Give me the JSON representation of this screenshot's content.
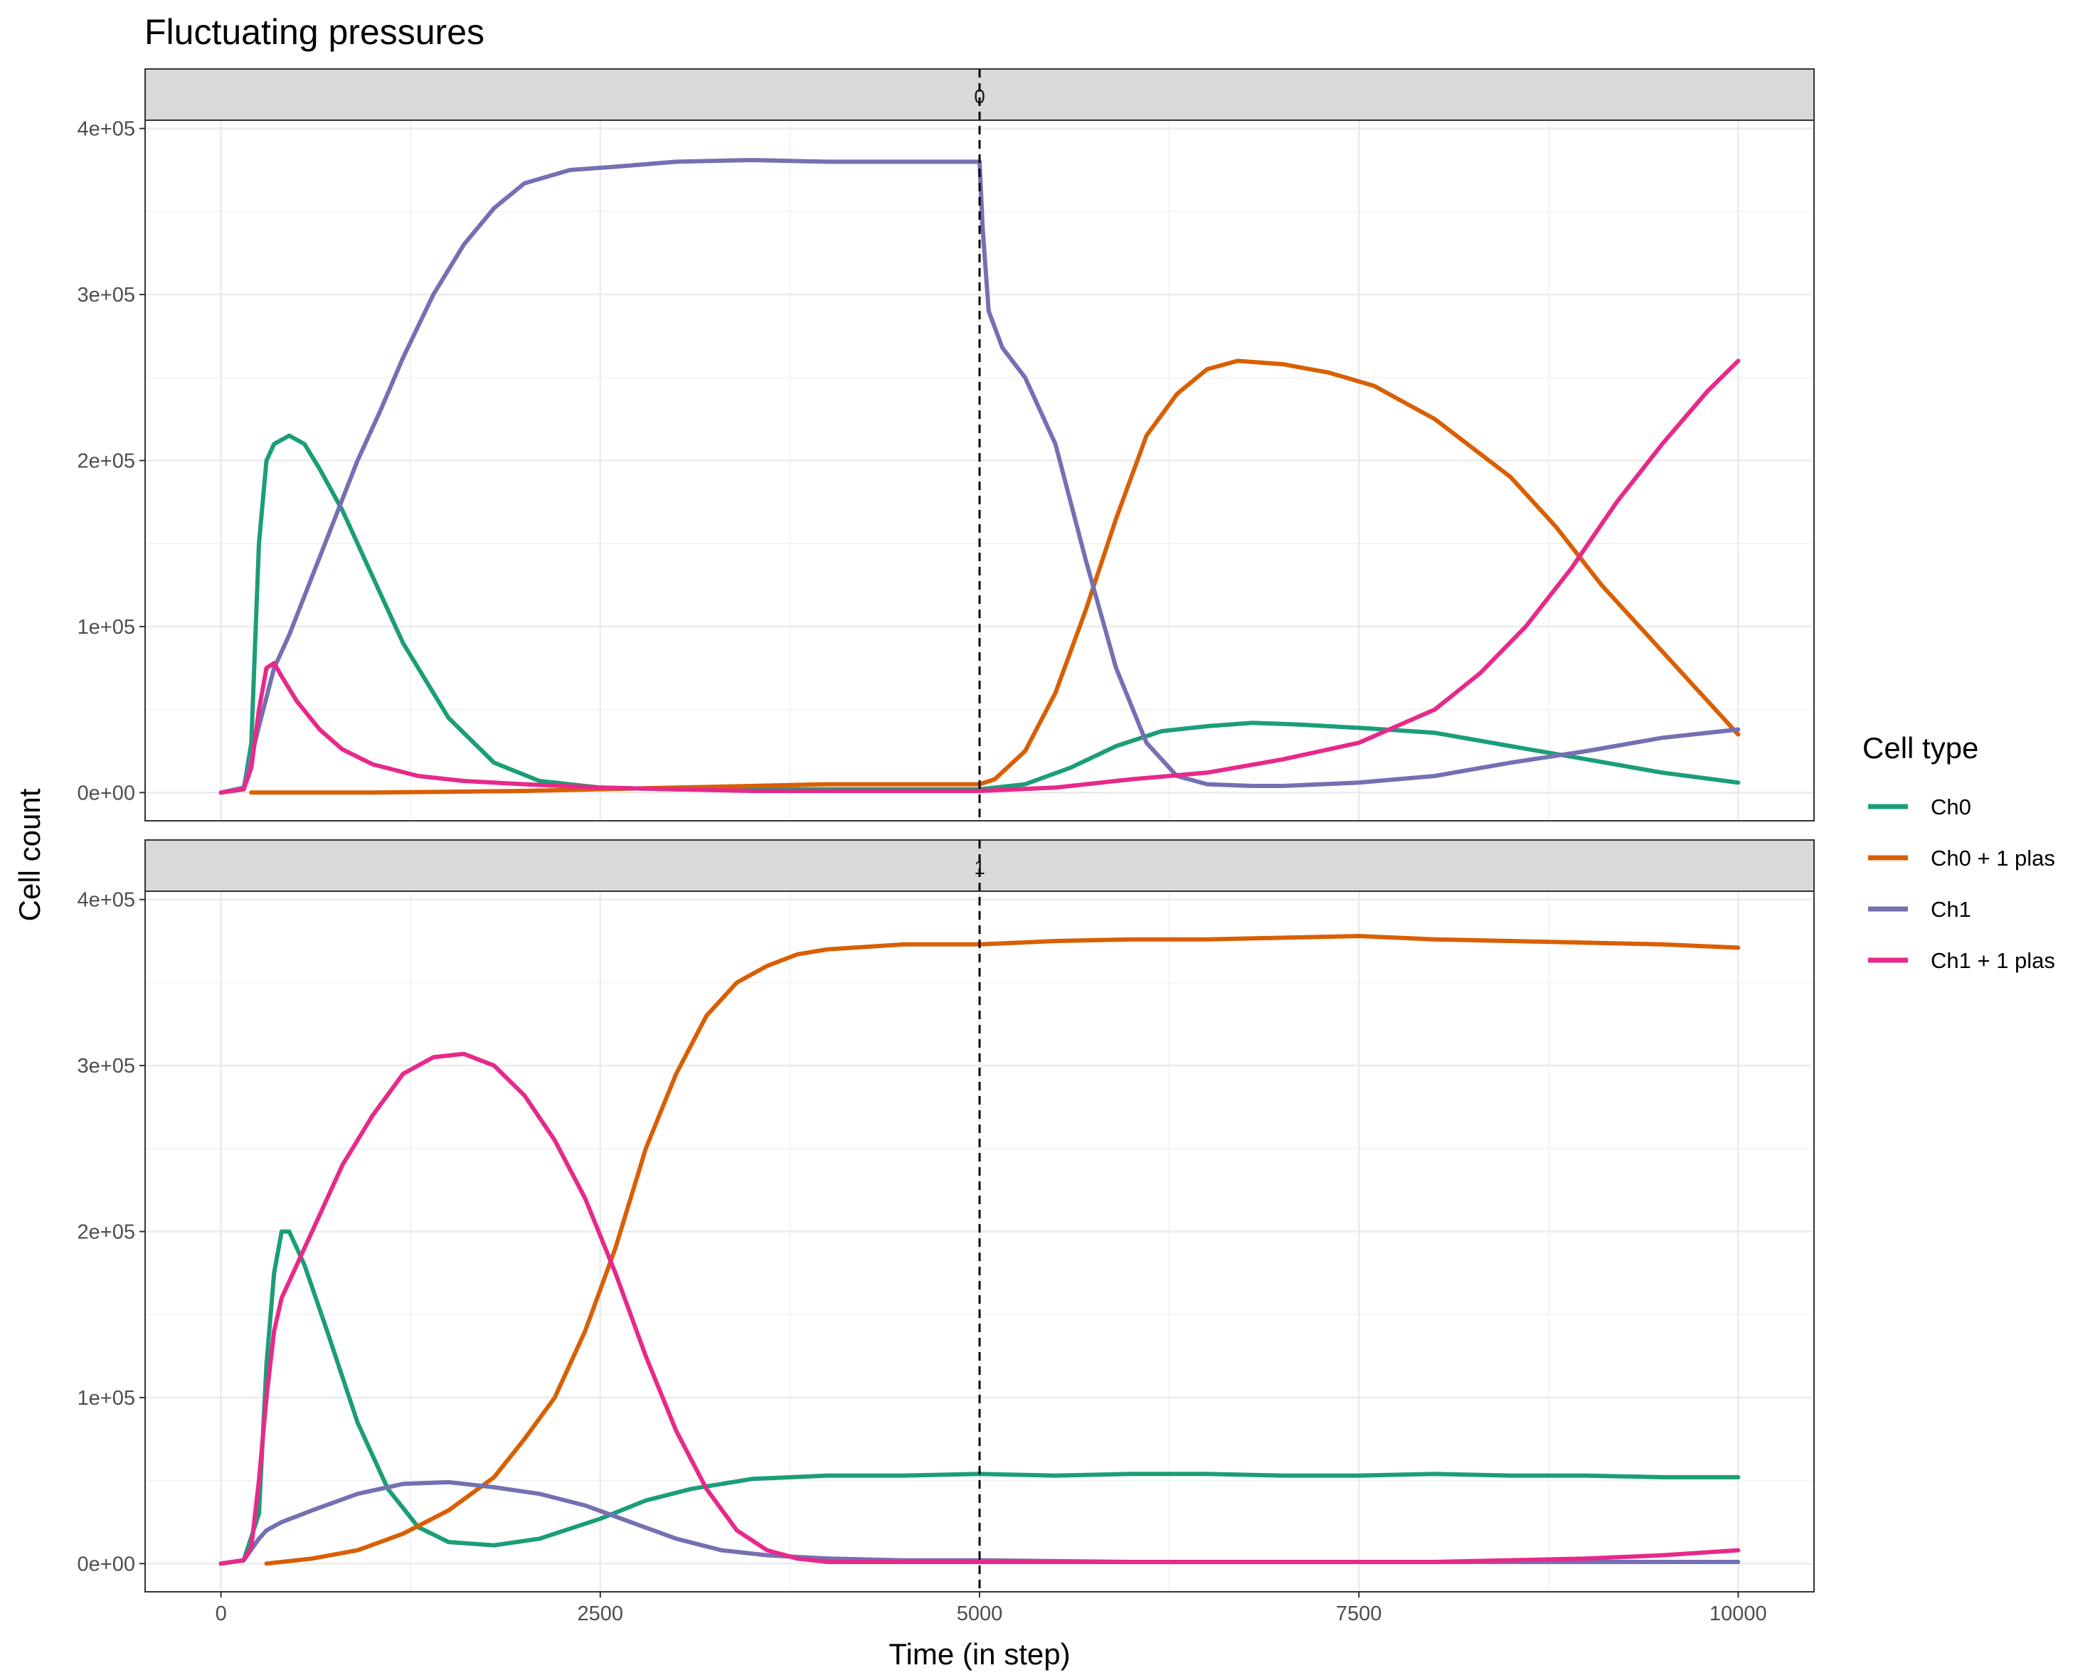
{
  "chart_data": {
    "type": "line",
    "title": "Fluctuating pressures",
    "xlabel": "Time (in step)",
    "ylabel": "Cell count",
    "xlim": [
      -500,
      10500
    ],
    "ylim": [
      -17000,
      405000
    ],
    "x_ticks": [
      0,
      2500,
      5000,
      7500,
      10000
    ],
    "x_tick_labels": [
      "0",
      "2500",
      "5000",
      "7500",
      "10000"
    ],
    "y_ticks": [
      0,
      100000,
      200000,
      300000,
      400000
    ],
    "y_tick_labels": [
      "0e+00",
      "1e+05",
      "2e+05",
      "3e+05",
      "4e+05"
    ],
    "vline_x": 5000,
    "grid": true,
    "legend_title": "Cell type",
    "legend_position": "right",
    "legend": [
      {
        "name": "Ch0",
        "color": "#1b9e77"
      },
      {
        "name": "Ch0 + 1 plas",
        "color": "#d95f02"
      },
      {
        "name": "Ch1",
        "color": "#7570b3"
      },
      {
        "name": "Ch1 + 1 plas",
        "color": "#e7298a"
      }
    ],
    "panels": [
      {
        "strip_label": "0",
        "series": [
          {
            "name": "Ch0",
            "color": "#1b9e77",
            "x": [
              0,
              150,
              200,
              250,
              300,
              350,
              450,
              550,
              650,
              800,
              1000,
              1200,
              1500,
              1800,
              2100,
              2500,
              3000,
              3500,
              4000,
              4500,
              5000,
              5300,
              5600,
              5900,
              6200,
              6500,
              6800,
              7100,
              7500,
              8000,
              8500,
              9000,
              9500,
              10000
            ],
            "y": [
              0,
              2000,
              30000,
              150000,
              200000,
              210000,
              215000,
              210000,
              195000,
              170000,
              130000,
              90000,
              45000,
              18000,
              7000,
              3000,
              2000,
              2000,
              2000,
              2000,
              2000,
              5000,
              15000,
              28000,
              37000,
              40000,
              42000,
              41000,
              39000,
              36000,
              28000,
              20000,
              12000,
              6000
            ]
          },
          {
            "name": "Ch0 + 1 plas",
            "color": "#d95f02",
            "x": [
              200,
              1000,
              2000,
              3000,
              4000,
              4500,
              5000,
              5100,
              5300,
              5500,
              5700,
              5900,
              6100,
              6300,
              6500,
              6700,
              7000,
              7300,
              7600,
              8000,
              8500,
              8800,
              9100,
              9400,
              9700,
              10000
            ],
            "y": [
              0,
              0,
              1000,
              3000,
              5000,
              5000,
              5000,
              8000,
              25000,
              60000,
              110000,
              165000,
              215000,
              240000,
              255000,
              260000,
              258000,
              253000,
              245000,
              225000,
              190000,
              160000,
              125000,
              95000,
              65000,
              35000
            ]
          },
          {
            "name": "Ch1",
            "color": "#7570b3",
            "x": [
              0,
              150,
              250,
              350,
              450,
              600,
              750,
              900,
              1050,
              1200,
              1400,
              1600,
              1800,
              2000,
              2300,
              2600,
              3000,
              3500,
              4000,
              4500,
              4800,
              5000,
              5020,
              5060,
              5150,
              5300,
              5500,
              5700,
              5900,
              6100,
              6300,
              6500,
              6800,
              7000,
              7500,
              8000,
              8500,
              9000,
              9500,
              10000
            ],
            "y": [
              0,
              3000,
              40000,
              75000,
              95000,
              130000,
              165000,
              200000,
              230000,
              262000,
              300000,
              330000,
              352000,
              367000,
              375000,
              377000,
              380000,
              381000,
              380000,
              380000,
              380000,
              380000,
              340000,
              290000,
              268000,
              250000,
              210000,
              140000,
              75000,
              30000,
              10000,
              5000,
              4000,
              4000,
              6000,
              10000,
              18000,
              25000,
              33000,
              38000
            ]
          },
          {
            "name": "Ch1 + 1 plas",
            "color": "#e7298a",
            "x": [
              0,
              150,
              200,
              250,
              300,
              350,
              400,
              500,
              650,
              800,
              1000,
              1300,
              1600,
              2000,
              2500,
              3000,
              3500,
              4000,
              4500,
              5000,
              5500,
              6000,
              6500,
              7000,
              7500,
              8000,
              8300,
              8600,
              8900,
              9200,
              9500,
              9800,
              10000
            ],
            "y": [
              0,
              2000,
              15000,
              50000,
              75000,
              78000,
              70000,
              55000,
              38000,
              26000,
              17000,
              10000,
              7000,
              5000,
              3000,
              2000,
              1000,
              1000,
              1000,
              1000,
              3000,
              8000,
              12000,
              20000,
              30000,
              50000,
              72000,
              100000,
              135000,
              175000,
              210000,
              242000,
              260000
            ]
          }
        ]
      },
      {
        "strip_label": "1",
        "series": [
          {
            "name": "Ch0",
            "color": "#1b9e77",
            "x": [
              0,
              150,
              250,
              300,
              350,
              400,
              450,
              550,
              700,
              900,
              1100,
              1300,
              1500,
              1800,
              2100,
              2500,
              2800,
              3100,
              3500,
              4000,
              4500,
              5000,
              5500,
              6000,
              6500,
              7000,
              7500,
              8000,
              8500,
              9000,
              9500,
              10000
            ],
            "y": [
              0,
              2000,
              30000,
              120000,
              175000,
              200000,
              200000,
              180000,
              140000,
              85000,
              45000,
              22000,
              13000,
              11000,
              15000,
              27000,
              38000,
              45000,
              51000,
              53000,
              53000,
              54000,
              53000,
              54000,
              54000,
              53000,
              53000,
              54000,
              53000,
              53000,
              52000,
              52000
            ]
          },
          {
            "name": "Ch0 + 1 plas",
            "color": "#d95f02",
            "x": [
              300,
              600,
              900,
              1200,
              1500,
              1800,
              2000,
              2200,
              2400,
              2600,
              2800,
              3000,
              3200,
              3400,
              3600,
              3800,
              4000,
              4500,
              5000,
              5500,
              6000,
              6500,
              7000,
              7500,
              8000,
              8500,
              9000,
              9500,
              10000
            ],
            "y": [
              0,
              3000,
              8000,
              18000,
              32000,
              52000,
              75000,
              100000,
              140000,
              190000,
              250000,
              295000,
              330000,
              350000,
              360000,
              367000,
              370000,
              373000,
              373000,
              375000,
              376000,
              376000,
              377000,
              378000,
              376000,
              375000,
              374000,
              373000,
              371000
            ]
          },
          {
            "name": "Ch1",
            "color": "#7570b3",
            "x": [
              0,
              150,
              250,
              300,
              400,
              600,
              900,
              1200,
              1500,
              1800,
              2100,
              2400,
              2700,
              3000,
              3300,
              3600,
              4000,
              4500,
              5000,
              6000,
              7000,
              8000,
              9000,
              10000
            ],
            "y": [
              0,
              2000,
              15000,
              20000,
              25000,
              32000,
              42000,
              48000,
              49000,
              46000,
              42000,
              35000,
              25000,
              15000,
              8000,
              5000,
              3000,
              2000,
              2000,
              1000,
              1000,
              1000,
              1000,
              1000
            ]
          },
          {
            "name": "Ch1 + 1 plas",
            "color": "#e7298a",
            "x": [
              0,
              150,
              200,
              250,
              300,
              350,
              400,
              500,
              650,
              800,
              1000,
              1200,
              1400,
              1600,
              1800,
              2000,
              2200,
              2400,
              2600,
              2800,
              3000,
              3200,
              3400,
              3600,
              3800,
              4000,
              4500,
              5000,
              6000,
              7000,
              8000,
              9000,
              9500,
              10000
            ],
            "y": [
              0,
              2000,
              10000,
              50000,
              100000,
              140000,
              160000,
              180000,
              210000,
              240000,
              270000,
              295000,
              305000,
              307000,
              300000,
              282000,
              255000,
              220000,
              175000,
              125000,
              80000,
              45000,
              20000,
              8000,
              3000,
              1000,
              1000,
              1000,
              1000,
              1000,
              1000,
              3000,
              5000,
              8000
            ]
          }
        ]
      }
    ]
  }
}
